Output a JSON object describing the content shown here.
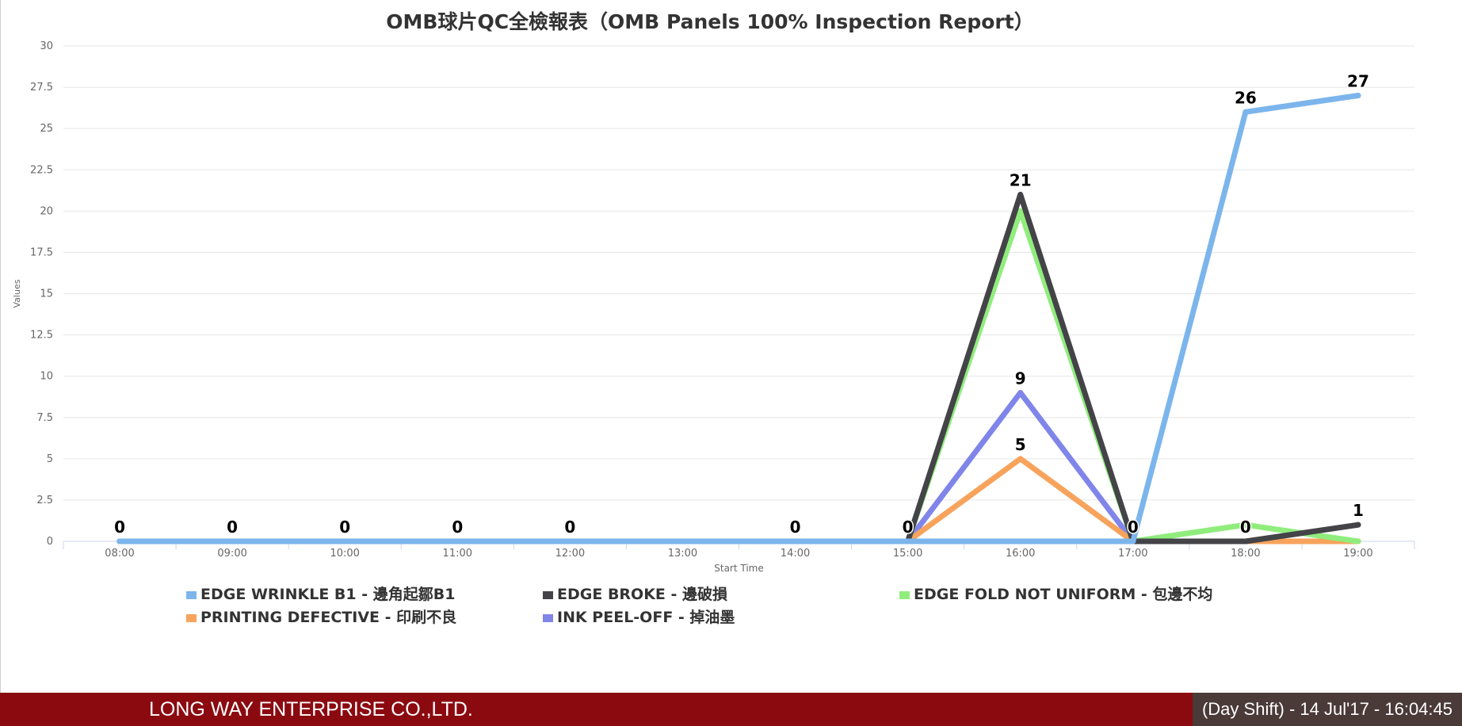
{
  "chart_data": {
    "type": "line",
    "title": "OMB球片QC全檢報表（OMB Panels 100% Inspection Report）",
    "xlabel": "Start Time",
    "ylabel": "Values",
    "ylim": [
      0,
      30
    ],
    "yticks": [
      "0",
      "2.5",
      "5",
      "7.5",
      "10",
      "12.5",
      "15",
      "17.5",
      "20",
      "22.5",
      "25",
      "27.5",
      "30"
    ],
    "grid": true,
    "legend_position": "bottom",
    "categories": [
      "08:00",
      "09:00",
      "10:00",
      "11:00",
      "12:00",
      "13:00",
      "14:00",
      "15:00",
      "16:00",
      "17:00",
      "18:00",
      "19:00"
    ],
    "series": [
      {
        "name": "EDGE WRINKLE B1 - 邊角起鄒B1",
        "color": "#7cb5ec",
        "values": [
          0,
          0,
          0,
          0,
          0,
          0,
          0,
          0,
          0,
          0,
          26,
          27
        ]
      },
      {
        "name": "EDGE BROKE - 邊破損",
        "color": "#434348",
        "values": [
          0,
          0,
          0,
          0,
          0,
          0,
          0,
          0,
          21,
          0,
          0,
          1
        ]
      },
      {
        "name": "EDGE FOLD NOT UNIFORM - 包邊不均",
        "color": "#90ed7d",
        "values": [
          0,
          0,
          0,
          0,
          0,
          0,
          0,
          0,
          20,
          0,
          1,
          0
        ]
      },
      {
        "name": "PRINTING DEFECTIVE - 印刷不良",
        "color": "#f7a35c",
        "values": [
          0,
          0,
          0,
          0,
          0,
          0,
          0,
          0,
          5,
          0,
          0,
          0
        ]
      },
      {
        "name": "INK PEEL-OFF - 掉油墨",
        "color": "#8085e9",
        "values": [
          0,
          0,
          0,
          0,
          0,
          0,
          0,
          0,
          9,
          0,
          0,
          0
        ]
      }
    ],
    "data_labels": [
      {
        "category": "08:00",
        "value": 0,
        "text": "0"
      },
      {
        "category": "09:00",
        "value": 0,
        "text": "0"
      },
      {
        "category": "10:00",
        "value": 0,
        "text": "0"
      },
      {
        "category": "11:00",
        "value": 0,
        "text": "0"
      },
      {
        "category": "12:00",
        "value": 0,
        "text": "0"
      },
      {
        "category": "14:00",
        "value": 0,
        "text": "0"
      },
      {
        "category": "15:00",
        "value": 0,
        "text": "0"
      },
      {
        "category": "16:00",
        "value": 21,
        "text": "21"
      },
      {
        "category": "16:00",
        "value": 9,
        "text": "9"
      },
      {
        "category": "16:00",
        "value": 5,
        "text": "5"
      },
      {
        "category": "17:00",
        "value": 0,
        "text": "0"
      },
      {
        "category": "18:00",
        "value": 26,
        "text": "26"
      },
      {
        "category": "18:00",
        "value": 0,
        "text": "0"
      },
      {
        "category": "19:00",
        "value": 27,
        "text": "27"
      },
      {
        "category": "19:00",
        "value": 1,
        "text": "1"
      }
    ]
  },
  "footer": {
    "company": "LONG WAY ENTERPRISE CO.,LTD.",
    "shift_info": "(Day Shift) - 14 Jul'17 - 16:04:45"
  }
}
